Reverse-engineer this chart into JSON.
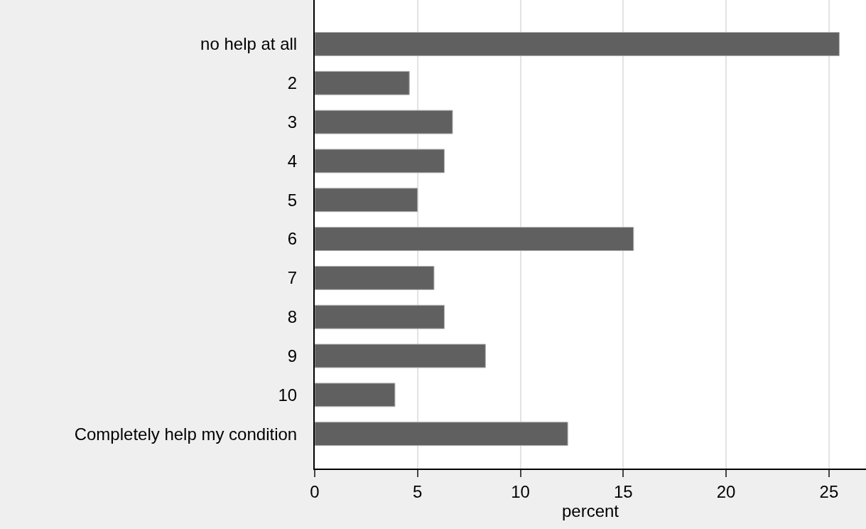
{
  "chart_data": {
    "type": "bar",
    "orientation": "horizontal",
    "xlabel": "percent",
    "categories": [
      "no help at all",
      "2",
      "3",
      "4",
      "5",
      "6",
      "7",
      "8",
      "9",
      "10",
      "Completely help my condition"
    ],
    "values": [
      25.5,
      4.6,
      6.7,
      6.3,
      5.0,
      15.5,
      5.8,
      6.3,
      8.3,
      3.9,
      12.3
    ],
    "color": "#606060",
    "xlim": [
      0,
      26.8
    ],
    "xticks": [
      0,
      5,
      10,
      15,
      20,
      25
    ],
    "grid": "x"
  }
}
